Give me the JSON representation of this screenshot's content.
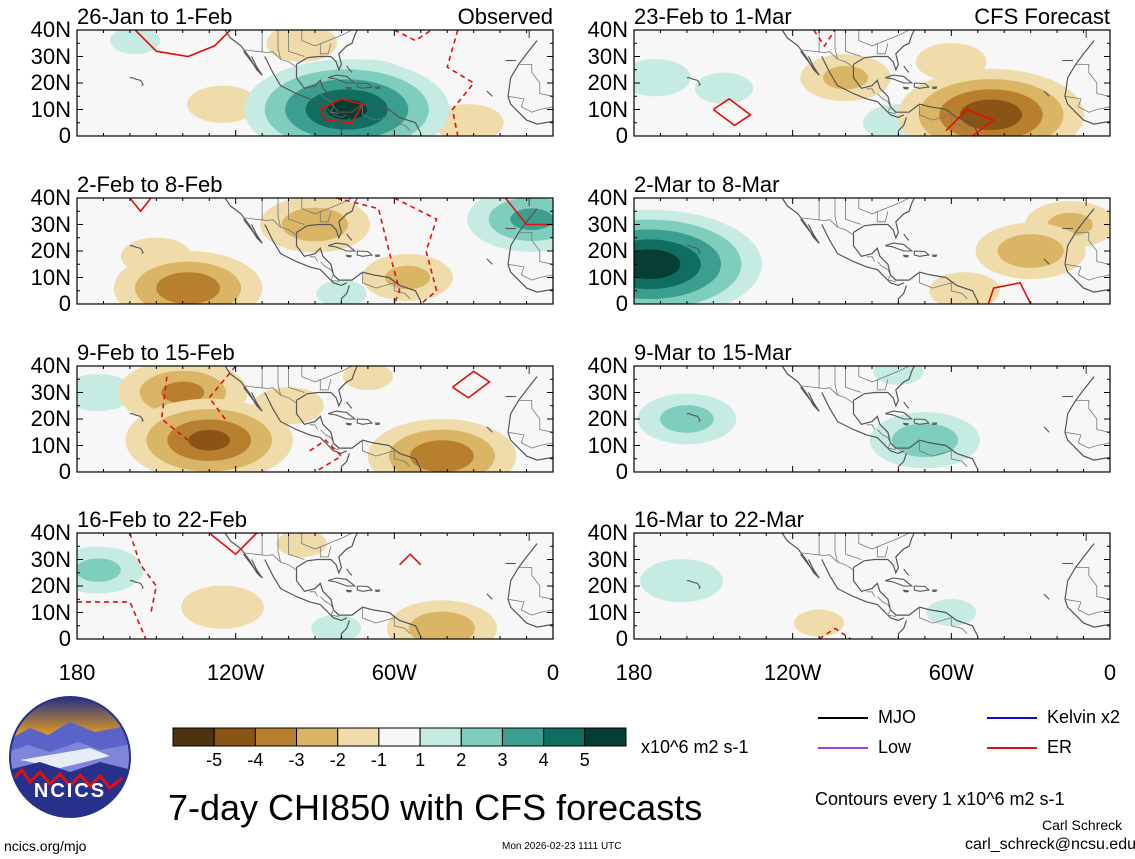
{
  "chart_data": {
    "type": "heatmap",
    "title": "7-day CHI850 with CFS forecasts",
    "colorbar": {
      "ticks": [
        "-5",
        "-4",
        "-3",
        "-2",
        "-1",
        "1",
        "2",
        "3",
        "4",
        "5"
      ],
      "colors": [
        "#4f3211",
        "#8a5514",
        "#b8802e",
        "#d9b565",
        "#f0dcaa",
        "#f7f7f7",
        "#c6ebe3",
        "#7fcdbd",
        "#3b9e8e",
        "#0f6e60",
        "#063e33"
      ],
      "units": "x10^6 m2 s-1"
    },
    "x_axis": {
      "ticks": [
        "180",
        "120W",
        "60W",
        "0"
      ],
      "range_deg_lon": [
        -180,
        0
      ]
    },
    "y_axis": {
      "ticks": [
        "40N",
        "30N",
        "20N",
        "10N",
        "0"
      ],
      "range_deg_lat": [
        0,
        40
      ]
    },
    "panels": [
      {
        "col": 0,
        "row": 0,
        "title": "26-Jan to 1-Feb",
        "label": "Observed",
        "blobs": [
          {
            "lon": -78,
            "lat": 10,
            "value": 5
          },
          {
            "lon": -70,
            "lat": 20,
            "value": 2
          },
          {
            "lon": -158,
            "lat": 36,
            "value": 1
          },
          {
            "lon": -125,
            "lat": 12,
            "value": -1.5
          },
          {
            "lon": -95,
            "lat": 35,
            "value": -1.5
          },
          {
            "lon": -32,
            "lat": 5,
            "value": -1.5
          }
        ],
        "contours": [
          {
            "kind": "solid",
            "points": [
              [
                -158,
                40
              ],
              [
                -150,
                32
              ],
              [
                -138,
                30
              ],
              [
                -128,
                34
              ],
              [
                -122,
                40
              ]
            ]
          },
          {
            "kind": "solid",
            "points": [
              [
                -88,
                10
              ],
              [
                -80,
                14
              ],
              [
                -72,
                12
              ],
              [
                -76,
                5
              ],
              [
                -86,
                6
              ],
              [
                -88,
                10
              ]
            ]
          },
          {
            "kind": "dashed",
            "points": [
              [
                -60,
                40
              ],
              [
                -52,
                36
              ],
              [
                -46,
                40
              ]
            ]
          },
          {
            "kind": "dashed",
            "points": [
              [
                -36,
                40
              ],
              [
                -40,
                26
              ],
              [
                -30,
                20
              ],
              [
                -38,
                10
              ],
              [
                -36,
                0
              ]
            ]
          }
        ]
      },
      {
        "col": 1,
        "row": 0,
        "title": "23-Feb to 1-Mar",
        "label": "CFS Forecast",
        "blobs": [
          {
            "lon": -172,
            "lat": 22,
            "value": 1.5
          },
          {
            "lon": -146,
            "lat": 18,
            "value": 1.2
          },
          {
            "lon": -100,
            "lat": 22,
            "value": -2
          },
          {
            "lon": -45,
            "lat": 8,
            "value": -4.5
          },
          {
            "lon": -60,
            "lat": 28,
            "value": -1.5
          },
          {
            "lon": -80,
            "lat": 5,
            "value": 1.5
          }
        ],
        "contours": [
          {
            "kind": "solid",
            "points": [
              [
                -150,
                10
              ],
              [
                -144,
                14
              ],
              [
                -136,
                8
              ],
              [
                -142,
                4
              ],
              [
                -150,
                10
              ]
            ]
          },
          {
            "kind": "solid",
            "points": [
              [
                -62,
                2
              ],
              [
                -54,
                10
              ],
              [
                -44,
                6
              ],
              [
                -52,
                0
              ]
            ]
          },
          {
            "kind": "dashed",
            "points": [
              [
                -112,
                40
              ],
              [
                -108,
                34
              ],
              [
                -104,
                40
              ]
            ]
          }
        ]
      },
      {
        "col": 0,
        "row": 1,
        "title": "2-Feb to 8-Feb",
        "label": "",
        "blobs": [
          {
            "lon": -138,
            "lat": 6,
            "value": -3.5
          },
          {
            "lon": -150,
            "lat": 18,
            "value": -1.5
          },
          {
            "lon": -90,
            "lat": 30,
            "value": -2.5
          },
          {
            "lon": -55,
            "lat": 10,
            "value": -2
          },
          {
            "lon": -8,
            "lat": 32,
            "value": 3
          },
          {
            "lon": -80,
            "lat": 4,
            "value": 1
          }
        ],
        "contours": [
          {
            "kind": "solid",
            "points": [
              [
                -160,
                40
              ],
              [
                -156,
                35
              ],
              [
                -152,
                40
              ]
            ]
          },
          {
            "kind": "solid",
            "points": [
              [
                -18,
                40
              ],
              [
                -10,
                30
              ],
              [
                0,
                30
              ]
            ]
          },
          {
            "kind": "dashed",
            "points": [
              [
                -82,
                40
              ],
              [
                -66,
                36
              ],
              [
                -62,
                20
              ],
              [
                -58,
                5
              ],
              [
                -60,
                0
              ]
            ]
          },
          {
            "kind": "dashed",
            "points": [
              [
                -60,
                40
              ],
              [
                -44,
                32
              ],
              [
                -48,
                20
              ],
              [
                -44,
                5
              ],
              [
                -50,
                0
              ]
            ]
          }
        ]
      },
      {
        "col": 1,
        "row": 1,
        "title": "2-Mar to 8-Mar",
        "label": "",
        "blobs": [
          {
            "lon": -174,
            "lat": 15,
            "value": 5.5
          },
          {
            "lon": -30,
            "lat": 20,
            "value": -2.5
          },
          {
            "lon": -15,
            "lat": 30,
            "value": -2
          },
          {
            "lon": -55,
            "lat": 5,
            "value": -1.5
          }
        ],
        "contours": [
          {
            "kind": "solid",
            "points": [
              [
                -46,
                0
              ],
              [
                -44,
                6
              ],
              [
                -34,
                8
              ],
              [
                -30,
                0
              ]
            ]
          }
        ]
      },
      {
        "col": 0,
        "row": 2,
        "title": "9-Feb to 15-Feb",
        "label": "",
        "blobs": [
          {
            "lon": -130,
            "lat": 12,
            "value": -4
          },
          {
            "lon": -140,
            "lat": 30,
            "value": -3
          },
          {
            "lon": -100,
            "lat": 25,
            "value": -1.5
          },
          {
            "lon": -42,
            "lat": 6,
            "value": -3.5
          },
          {
            "lon": -172,
            "lat": 30,
            "value": 1.5
          },
          {
            "lon": -70,
            "lat": 36,
            "value": -1
          }
        ],
        "contours": [
          {
            "kind": "solid",
            "points": [
              [
                -38,
                32
              ],
              [
                -30,
                38
              ],
              [
                -24,
                34
              ],
              [
                -32,
                28
              ],
              [
                -38,
                32
              ]
            ]
          },
          {
            "kind": "dashed",
            "points": [
              [
                -146,
                36
              ],
              [
                -148,
                20
              ],
              [
                -138,
                12
              ]
            ]
          },
          {
            "kind": "dashed",
            "points": [
              [
                -120,
                40
              ],
              [
                -130,
                28
              ],
              [
                -124,
                20
              ]
            ]
          },
          {
            "kind": "dashed",
            "points": [
              [
                -92,
                8
              ],
              [
                -86,
                12
              ],
              [
                -80,
                6
              ],
              [
                -90,
                0
              ]
            ]
          }
        ]
      },
      {
        "col": 1,
        "row": 2,
        "title": "9-Mar to 15-Mar",
        "label": "",
        "blobs": [
          {
            "lon": -160,
            "lat": 20,
            "value": 2.2
          },
          {
            "lon": -70,
            "lat": 12,
            "value": 2.5
          },
          {
            "lon": -80,
            "lat": 38,
            "value": 1
          }
        ],
        "contours": []
      },
      {
        "col": 0,
        "row": 3,
        "title": "16-Feb to 22-Feb",
        "label": "",
        "blobs": [
          {
            "lon": -172,
            "lat": 26,
            "value": 2
          },
          {
            "lon": -125,
            "lat": 12,
            "value": -1.8
          },
          {
            "lon": -42,
            "lat": 4,
            "value": -2.5
          },
          {
            "lon": -95,
            "lat": 36,
            "value": -1
          },
          {
            "lon": -82,
            "lat": 4,
            "value": 1
          }
        ],
        "contours": [
          {
            "kind": "solid",
            "points": [
              [
                -130,
                40
              ],
              [
                -120,
                32
              ],
              [
                -112,
                40
              ]
            ]
          },
          {
            "kind": "solid",
            "points": [
              [
                -58,
                28
              ],
              [
                -54,
                32
              ],
              [
                -50,
                28
              ]
            ]
          },
          {
            "kind": "dashed",
            "points": [
              [
                -160,
                40
              ],
              [
                -156,
                28
              ],
              [
                -150,
                20
              ],
              [
                -152,
                10
              ]
            ]
          },
          {
            "kind": "dashed",
            "points": [
              [
                -180,
                14
              ],
              [
                -160,
                14
              ],
              [
                -154,
                0
              ]
            ]
          }
        ]
      },
      {
        "col": 1,
        "row": 3,
        "title": "16-Mar to 22-Mar",
        "label": "",
        "blobs": [
          {
            "lon": -162,
            "lat": 22,
            "value": 1.8
          },
          {
            "lon": -110,
            "lat": 6,
            "value": -1
          },
          {
            "lon": -60,
            "lat": 10,
            "value": 1
          }
        ],
        "contours": [
          {
            "kind": "dashed",
            "points": [
              [
                -110,
                0
              ],
              [
                -104,
                4
              ],
              [
                -98,
                0
              ]
            ]
          }
        ]
      }
    ]
  },
  "legend": {
    "items": [
      {
        "label": "MJO",
        "color": "#000000"
      },
      {
        "label": "Kelvin x2",
        "color": "#0a0adc"
      },
      {
        "label": "Low",
        "color": "#a040e0"
      },
      {
        "label": "ER",
        "color": "#e01010"
      }
    ],
    "contours_note": "Contours every 1 x10^6 m2 s-1"
  },
  "footer": {
    "website": "ncics.org/mjo",
    "timestamp": "Mon 2026-02-23 1111 UTC",
    "author": "Carl Schreck",
    "email": "carl_schreck@ncsu.edu"
  },
  "logo": {
    "text": "NCICS"
  }
}
